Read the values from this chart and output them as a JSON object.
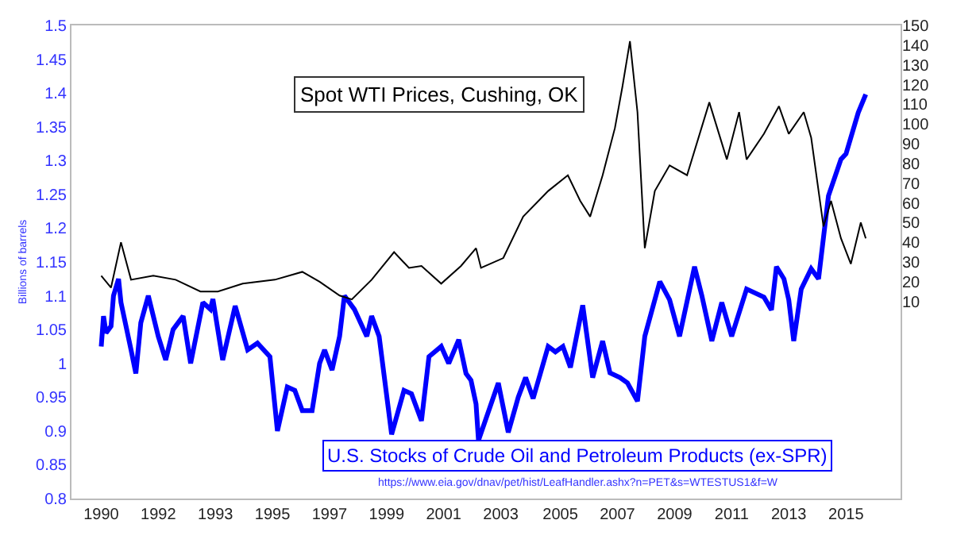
{
  "chart_data": {
    "type": "line",
    "ylabel": "Billions of barrels",
    "annotations": [
      "https://www.eia.gov/dnav/pet/hist/LeafHandler.ashx?n=PET&s=WTESTUS1&f=W"
    ],
    "legend": false,
    "marker": "none",
    "line_style": "solid",
    "xlim": [
      "1989-02",
      "2016-12"
    ],
    "xticks": [
      {
        "value": "1990-02",
        "label": "1990"
      },
      {
        "value": "1992-01",
        "label": "1992"
      },
      {
        "value": "1993-12",
        "label": "1993"
      },
      {
        "value": "1995-11",
        "label": "1995"
      },
      {
        "value": "1997-10",
        "label": "1997"
      },
      {
        "value": "1999-09",
        "label": "1999"
      },
      {
        "value": "2001-08",
        "label": "2001"
      },
      {
        "value": "2003-07",
        "label": "2003"
      },
      {
        "value": "2005-07",
        "label": "2005"
      },
      {
        "value": "2007-06",
        "label": "2007"
      },
      {
        "value": "2009-05",
        "label": "2009"
      },
      {
        "value": "2011-04",
        "label": "2011"
      },
      {
        "value": "2013-03",
        "label": "2013"
      },
      {
        "value": "2015-02",
        "label": "2015"
      }
    ],
    "ylim": [
      0.8,
      1.5
    ],
    "yticks": [
      0.8,
      0.85,
      0.9,
      0.95,
      1,
      1.05,
      1.1,
      1.15,
      1.2,
      1.25,
      1.3,
      1.35,
      1.4,
      1.45,
      1.5
    ],
    "y2lim": [
      -90,
      150
    ],
    "y2ticks": [
      10,
      20,
      30,
      40,
      50,
      60,
      70,
      80,
      90,
      100,
      110,
      120,
      130,
      140,
      150
    ],
    "series": [
      {
        "name": "U.S. Stocks of Crude Oil and Petroleum Products (ex-SPR)",
        "color": "#0000ff",
        "x": [
          "1990-02",
          "1990-03",
          "1990-04",
          "1990-06",
          "1990-07",
          "1990-09",
          "1990-10",
          "1991-02",
          "1991-04",
          "1991-06",
          "1991-09",
          "1992-01",
          "1992-04",
          "1992-07",
          "1992-11",
          "1993-02",
          "1993-07",
          "1993-10",
          "1993-11",
          "1994-03",
          "1994-08",
          "1995-01",
          "1995-05",
          "1995-10",
          "1996-01",
          "1996-05",
          "1996-08",
          "1996-11",
          "1997-03",
          "1997-06",
          "1997-08",
          "1997-11",
          "1998-02",
          "1998-04",
          "1998-08",
          "1999-01",
          "1999-03",
          "1999-06",
          "1999-11",
          "2000-04",
          "2000-07",
          "2000-11",
          "2001-02",
          "2001-07",
          "2001-10",
          "2002-02",
          "2002-05",
          "2002-07",
          "2002-09",
          "2002-10",
          "2003-06",
          "2003-10",
          "2004-02",
          "2004-05",
          "2004-08",
          "2005-02",
          "2005-05",
          "2005-08",
          "2005-11",
          "2006-04",
          "2006-08",
          "2006-12",
          "2007-03",
          "2007-07",
          "2007-10",
          "2008-02",
          "2008-05",
          "2008-11",
          "2009-03",
          "2009-07",
          "2010-01",
          "2010-04",
          "2010-08",
          "2010-12",
          "2011-04",
          "2011-10",
          "2012-05",
          "2012-08",
          "2012-10",
          "2013-01",
          "2013-03",
          "2013-05",
          "2013-08",
          "2013-12",
          "2014-03",
          "2014-07",
          "2014-12",
          "2015-02",
          "2015-07",
          "2015-10"
        ],
        "values": [
          1.025,
          1.07,
          1.045,
          1.055,
          1.1,
          1.125,
          1.09,
          1.02,
          0.985,
          1.06,
          1.1,
          1.04,
          1.005,
          1.05,
          1.07,
          1.0,
          1.09,
          1.08,
          1.095,
          1.005,
          1.085,
          1.02,
          1.03,
          1.01,
          0.9,
          0.965,
          0.96,
          0.93,
          0.93,
          1.0,
          1.02,
          0.99,
          1.04,
          1.1,
          1.08,
          1.04,
          1.07,
          1.04,
          0.895,
          0.96,
          0.955,
          0.915,
          1.01,
          1.025,
          1.0,
          1.035,
          0.985,
          0.975,
          0.94,
          0.886,
          0.971,
          0.898,
          0.95,
          0.979,
          0.948,
          1.025,
          1.017,
          1.025,
          0.994,
          1.086,
          0.979,
          1.033,
          0.986,
          0.979,
          0.971,
          0.944,
          1.04,
          1.121,
          1.094,
          1.04,
          1.143,
          1.1,
          1.033,
          1.09,
          1.04,
          1.11,
          1.098,
          1.079,
          1.143,
          1.125,
          1.094,
          1.033,
          1.11,
          1.14,
          1.125,
          1.248,
          1.302,
          1.31,
          1.371,
          1.398
        ]
      },
      {
        "name": "Spot WTI Prices, Cushing, OK",
        "color": "#000000",
        "axis": "y2",
        "x": [
          "1990-02",
          "1990-06",
          "1990-10",
          "1991-02",
          "1991-11",
          "1992-08",
          "1993-06",
          "1994-01",
          "1994-11",
          "1995-12",
          "1996-11",
          "1997-06",
          "1998-02",
          "1998-07",
          "1999-03",
          "1999-12",
          "2000-06",
          "2000-11",
          "2001-07",
          "2002-03",
          "2002-09",
          "2002-11",
          "2003-08",
          "2004-04",
          "2005-02",
          "2005-10",
          "2006-03",
          "2006-07",
          "2006-12",
          "2007-05",
          "2007-08",
          "2007-11",
          "2008-02",
          "2008-05",
          "2008-09",
          "2009-03",
          "2009-10",
          "2010-07",
          "2011-02",
          "2011-07",
          "2011-10",
          "2012-05",
          "2012-11",
          "2013-03",
          "2013-09",
          "2013-12",
          "2014-05",
          "2014-08",
          "2014-12",
          "2015-04",
          "2015-08",
          "2015-10"
        ],
        "values": [
          23,
          17,
          40,
          21,
          23,
          21,
          15,
          15,
          19,
          21,
          25,
          20,
          13,
          11,
          21,
          35,
          27,
          28,
          19,
          28,
          37,
          27,
          32,
          53,
          66,
          74,
          61,
          53,
          74,
          98,
          119,
          142,
          106,
          37,
          66,
          79,
          74,
          111,
          82,
          106,
          82,
          95,
          109,
          95,
          106,
          93,
          48,
          61,
          42,
          29,
          50,
          42
        ]
      }
    ]
  }
}
